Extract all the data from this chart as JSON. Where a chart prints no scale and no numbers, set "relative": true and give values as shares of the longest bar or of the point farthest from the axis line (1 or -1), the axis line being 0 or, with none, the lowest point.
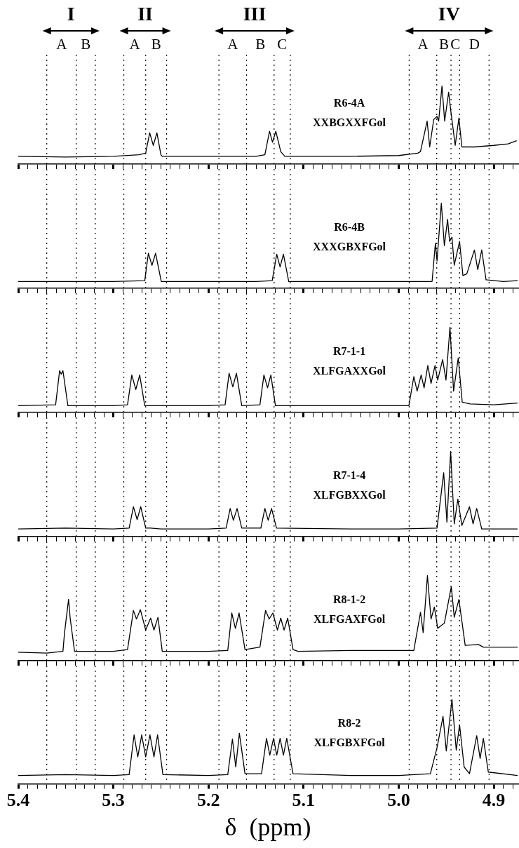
{
  "chart_data": [
    {
      "type": "line",
      "title": "R6-4A",
      "subtitle": "XXBGXXFGol",
      "relative": true,
      "color": "#000000",
      "xlim": [
        5.4,
        4.875
      ],
      "tick_labels": false,
      "xticks": [
        5.4,
        {
          "value": 5.39,
          "label": null
        },
        {
          "value": 5.38,
          "label": null
        },
        {
          "value": 5.37,
          "label": null
        },
        {
          "value": 5.36,
          "label": null
        },
        {
          "value": 5.35,
          "label": null
        },
        {
          "value": 5.34,
          "label": null
        },
        {
          "value": 5.33,
          "label": null
        },
        {
          "value": 5.32,
          "label": null
        },
        {
          "value": 5.31,
          "label": null
        },
        5.3,
        {
          "value": 5.29,
          "label": null
        },
        {
          "value": 5.28,
          "label": null
        },
        {
          "value": 5.27,
          "label": null
        },
        {
          "value": 5.26,
          "label": null
        },
        {
          "value": 5.25,
          "label": null
        },
        {
          "value": 5.24,
          "label": null
        },
        {
          "value": 5.23,
          "label": null
        },
        {
          "value": 5.22,
          "label": null
        },
        {
          "value": 5.21,
          "label": null
        },
        5.2,
        {
          "value": 5.19,
          "label": null
        },
        {
          "value": 5.18,
          "label": null
        },
        {
          "value": 5.17,
          "label": null
        },
        {
          "value": 5.16,
          "label": null
        },
        {
          "value": 5.15,
          "label": null
        },
        {
          "value": 5.14,
          "label": null
        },
        {
          "value": 5.13,
          "label": null
        },
        {
          "value": 5.12,
          "label": null
        },
        {
          "value": 5.11,
          "label": null
        },
        5.1,
        {
          "value": 5.09,
          "label": null
        },
        {
          "value": 5.08,
          "label": null
        },
        {
          "value": 5.07,
          "label": null
        },
        {
          "value": 5.06,
          "label": null
        },
        {
          "value": 5.05,
          "label": null
        },
        {
          "value": 5.04,
          "label": null
        },
        {
          "value": 5.03,
          "label": null
        },
        {
          "value": 5.02,
          "label": null
        },
        {
          "value": 5.01,
          "label": null
        },
        5,
        {
          "value": 4.99,
          "label": null
        },
        {
          "value": 4.98,
          "label": null
        },
        {
          "value": 4.97,
          "label": null
        },
        {
          "value": 4.96,
          "label": null
        },
        {
          "value": 4.95,
          "label": null
        },
        {
          "value": 4.94,
          "label": null
        },
        {
          "value": 4.93,
          "label": null
        },
        {
          "value": 4.92,
          "label": null
        },
        {
          "value": 4.91,
          "label": null
        },
        4.9,
        {
          "value": 4.89,
          "label": null
        },
        {
          "value": 4.88,
          "label": null
        }
      ],
      "ref_lines": [
        {
          "axis": "x",
          "value": 5.37,
          "label": "A",
          "line_style": "dotted"
        },
        {
          "axis": "x",
          "value": 5.339,
          "label": "B",
          "line_style": "dotted"
        },
        {
          "axis": "x",
          "value": 5.319,
          "line_style": "dotted"
        },
        {
          "axis": "x",
          "value": 5.289,
          "label": "A",
          "line_style": "dotted"
        },
        {
          "axis": "x",
          "value": 5.266,
          "label": "B",
          "line_style": "dotted"
        },
        {
          "axis": "x",
          "value": 5.244,
          "line_style": "dotted"
        },
        {
          "axis": "x",
          "value": 5.189,
          "label": "A",
          "line_style": "dotted"
        },
        {
          "axis": "x",
          "value": 5.16,
          "label": "B",
          "line_style": "dotted"
        },
        {
          "axis": "x",
          "value": 5.131,
          "label": "C",
          "line_style": "dotted"
        },
        {
          "axis": "x",
          "value": 5.114,
          "line_style": "dotted"
        },
        {
          "axis": "x",
          "value": 4.989,
          "label": "A",
          "line_style": "dotted"
        },
        {
          "axis": "x",
          "value": 4.96,
          "label": "B",
          "line_style": "dotted"
        },
        {
          "axis": "x",
          "value": 4.945,
          "label": "C",
          "line_style": "dotted"
        },
        {
          "axis": "x",
          "value": 4.936,
          "label": "D",
          "line_style": "dotted"
        },
        {
          "axis": "x",
          "value": 4.905,
          "line_style": "dotted"
        }
      ],
      "annotations": [
        "I",
        "II",
        "III",
        "IV"
      ],
      "x": [
        5.4,
        5.35,
        5.3,
        5.273,
        5.266,
        5.2618,
        5.258,
        5.2542,
        5.25,
        5.2486,
        5.2,
        5.15,
        5.1407,
        5.1358,
        5.1327,
        5.1292,
        5.124,
        5.1198,
        5.05,
        5.0,
        4.98,
        4.9771,
        4.9701,
        4.9674,
        4.9632,
        4.9597,
        4.958,
        4.9545,
        4.9517,
        4.9475,
        4.9451,
        4.9406,
        4.9367,
        4.9336,
        4.92,
        4.9,
        4.885,
        4.876
      ],
      "values": [
        0.1,
        0.09,
        0.1,
        0.12,
        0.14,
        0.4,
        0.24,
        0.4,
        0.12,
        0.1,
        0.1,
        0.1,
        0.12,
        0.42,
        0.28,
        0.42,
        0.16,
        0.1,
        0.1,
        0.11,
        0.14,
        0.16,
        0.55,
        0.22,
        0.57,
        0.61,
        0.55,
        1.0,
        0.55,
        0.92,
        0.67,
        0.24,
        0.59,
        0.22,
        0.22,
        0.24,
        0.26,
        0.3
      ]
    },
    {
      "type": "line",
      "title": "R6-4B",
      "subtitle": "XXXGBXFGol",
      "relative": true,
      "color": "#000000",
      "xlim": [
        5.4,
        4.875
      ],
      "tick_labels": false,
      "xticks": [
        5.4,
        {
          "value": 5.39,
          "label": null
        },
        {
          "value": 5.38,
          "label": null
        },
        {
          "value": 5.37,
          "label": null
        },
        {
          "value": 5.36,
          "label": null
        },
        {
          "value": 5.35,
          "label": null
        },
        {
          "value": 5.34,
          "label": null
        },
        {
          "value": 5.33,
          "label": null
        },
        {
          "value": 5.32,
          "label": null
        },
        {
          "value": 5.31,
          "label": null
        },
        5.3,
        {
          "value": 5.29,
          "label": null
        },
        {
          "value": 5.28,
          "label": null
        },
        {
          "value": 5.27,
          "label": null
        },
        {
          "value": 5.26,
          "label": null
        },
        {
          "value": 5.25,
          "label": null
        },
        {
          "value": 5.24,
          "label": null
        },
        {
          "value": 5.23,
          "label": null
        },
        {
          "value": 5.22,
          "label": null
        },
        {
          "value": 5.21,
          "label": null
        },
        5.2,
        {
          "value": 5.19,
          "label": null
        },
        {
          "value": 5.18,
          "label": null
        },
        {
          "value": 5.17,
          "label": null
        },
        {
          "value": 5.16,
          "label": null
        },
        {
          "value": 5.15,
          "label": null
        },
        {
          "value": 5.14,
          "label": null
        },
        {
          "value": 5.13,
          "label": null
        },
        {
          "value": 5.12,
          "label": null
        },
        {
          "value": 5.11,
          "label": null
        },
        5.1,
        {
          "value": 5.09,
          "label": null
        },
        {
          "value": 5.08,
          "label": null
        },
        {
          "value": 5.07,
          "label": null
        },
        {
          "value": 5.06,
          "label": null
        },
        {
          "value": 5.05,
          "label": null
        },
        {
          "value": 5.04,
          "label": null
        },
        {
          "value": 5.03,
          "label": null
        },
        {
          "value": 5.02,
          "label": null
        },
        {
          "value": 5.01,
          "label": null
        },
        5,
        {
          "value": 4.99,
          "label": null
        },
        {
          "value": 4.98,
          "label": null
        },
        {
          "value": 4.97,
          "label": null
        },
        {
          "value": 4.96,
          "label": null
        },
        {
          "value": 4.95,
          "label": null
        },
        {
          "value": 4.94,
          "label": null
        },
        {
          "value": 4.93,
          "label": null
        },
        {
          "value": 4.92,
          "label": null
        },
        {
          "value": 4.91,
          "label": null
        },
        4.9,
        {
          "value": 4.89,
          "label": null
        },
        {
          "value": 4.88,
          "label": null
        }
      ],
      "ref_lines": [
        {
          "axis": "x",
          "value": 5.37,
          "line_style": "dotted"
        },
        {
          "axis": "x",
          "value": 5.339,
          "line_style": "dotted"
        },
        {
          "axis": "x",
          "value": 5.319,
          "line_style": "dotted"
        },
        {
          "axis": "x",
          "value": 5.289,
          "line_style": "dotted"
        },
        {
          "axis": "x",
          "value": 5.266,
          "line_style": "dotted"
        },
        {
          "axis": "x",
          "value": 5.244,
          "line_style": "dotted"
        },
        {
          "axis": "x",
          "value": 5.189,
          "line_style": "dotted"
        },
        {
          "axis": "x",
          "value": 5.16,
          "line_style": "dotted"
        },
        {
          "axis": "x",
          "value": 5.131,
          "line_style": "dotted"
        },
        {
          "axis": "x",
          "value": 5.114,
          "line_style": "dotted"
        },
        {
          "axis": "x",
          "value": 4.989,
          "line_style": "dotted"
        },
        {
          "axis": "x",
          "value": 4.96,
          "line_style": "dotted"
        },
        {
          "axis": "x",
          "value": 4.945,
          "line_style": "dotted"
        },
        {
          "axis": "x",
          "value": 4.936,
          "line_style": "dotted"
        },
        {
          "axis": "x",
          "value": 4.905,
          "line_style": "dotted"
        }
      ],
      "x": [
        5.4,
        5.35,
        5.3,
        5.267,
        5.2632,
        5.2594,
        5.2556,
        5.2496,
        5.2,
        5.15,
        5.133,
        5.1282,
        5.1247,
        5.1212,
        5.1156,
        5.05,
        5.0,
        4.9649,
        4.9614,
        4.9597,
        4.9552,
        4.952,
        4.9486,
        4.9465,
        4.944,
        4.9416,
        4.936,
        4.9325,
        4.9284,
        4.9204,
        4.9169,
        4.9127,
        4.9082,
        4.89,
        4.875
      ],
      "values": [
        0.08,
        0.08,
        0.08,
        0.09,
        0.41,
        0.27,
        0.41,
        0.08,
        0.08,
        0.08,
        0.09,
        0.4,
        0.25,
        0.4,
        0.08,
        0.08,
        0.08,
        0.08,
        0.53,
        0.32,
        1.0,
        0.5,
        0.81,
        0.55,
        0.6,
        0.27,
        0.55,
        0.15,
        0.17,
        0.45,
        0.22,
        0.45,
        0.1,
        0.08,
        0.09
      ]
    },
    {
      "type": "line",
      "title": "R7-1-1",
      "subtitle": "XLFGAXXGol",
      "relative": true,
      "color": "#000000",
      "xlim": [
        5.4,
        4.875
      ],
      "tick_labels": false,
      "xticks": [
        5.4,
        {
          "value": 5.39,
          "label": null
        },
        {
          "value": 5.38,
          "label": null
        },
        {
          "value": 5.37,
          "label": null
        },
        {
          "value": 5.36,
          "label": null
        },
        {
          "value": 5.35,
          "label": null
        },
        {
          "value": 5.34,
          "label": null
        },
        {
          "value": 5.33,
          "label": null
        },
        {
          "value": 5.32,
          "label": null
        },
        {
          "value": 5.31,
          "label": null
        },
        5.3,
        {
          "value": 5.29,
          "label": null
        },
        {
          "value": 5.28,
          "label": null
        },
        {
          "value": 5.27,
          "label": null
        },
        {
          "value": 5.26,
          "label": null
        },
        {
          "value": 5.25,
          "label": null
        },
        {
          "value": 5.24,
          "label": null
        },
        {
          "value": 5.23,
          "label": null
        },
        {
          "value": 5.22,
          "label": null
        },
        {
          "value": 5.21,
          "label": null
        },
        5.2,
        {
          "value": 5.19,
          "label": null
        },
        {
          "value": 5.18,
          "label": null
        },
        {
          "value": 5.17,
          "label": null
        },
        {
          "value": 5.16,
          "label": null
        },
        {
          "value": 5.15,
          "label": null
        },
        {
          "value": 5.14,
          "label": null
        },
        {
          "value": 5.13,
          "label": null
        },
        {
          "value": 5.12,
          "label": null
        },
        {
          "value": 5.11,
          "label": null
        },
        5.1,
        {
          "value": 5.09,
          "label": null
        },
        {
          "value": 5.08,
          "label": null
        },
        {
          "value": 5.07,
          "label": null
        },
        {
          "value": 5.06,
          "label": null
        },
        {
          "value": 5.05,
          "label": null
        },
        {
          "value": 5.04,
          "label": null
        },
        {
          "value": 5.03,
          "label": null
        },
        {
          "value": 5.02,
          "label": null
        },
        {
          "value": 5.01,
          "label": null
        },
        5,
        {
          "value": 4.99,
          "label": null
        },
        {
          "value": 4.98,
          "label": null
        },
        {
          "value": 4.97,
          "label": null
        },
        {
          "value": 4.96,
          "label": null
        },
        {
          "value": 4.95,
          "label": null
        },
        {
          "value": 4.94,
          "label": null
        },
        {
          "value": 4.93,
          "label": null
        },
        {
          "value": 4.92,
          "label": null
        },
        {
          "value": 4.91,
          "label": null
        },
        4.9,
        {
          "value": 4.89,
          "label": null
        },
        {
          "value": 4.88,
          "label": null
        }
      ],
      "ref_lines": [
        {
          "axis": "x",
          "value": 5.37,
          "line_style": "dotted"
        },
        {
          "axis": "x",
          "value": 5.339,
          "line_style": "dotted"
        },
        {
          "axis": "x",
          "value": 5.319,
          "line_style": "dotted"
        },
        {
          "axis": "x",
          "value": 5.289,
          "line_style": "dotted"
        },
        {
          "axis": "x",
          "value": 5.266,
          "line_style": "dotted"
        },
        {
          "axis": "x",
          "value": 5.244,
          "line_style": "dotted"
        },
        {
          "axis": "x",
          "value": 5.189,
          "line_style": "dotted"
        },
        {
          "axis": "x",
          "value": 5.16,
          "line_style": "dotted"
        },
        {
          "axis": "x",
          "value": 5.131,
          "line_style": "dotted"
        },
        {
          "axis": "x",
          "value": 5.114,
          "line_style": "dotted"
        },
        {
          "axis": "x",
          "value": 4.989,
          "line_style": "dotted"
        },
        {
          "axis": "x",
          "value": 4.96,
          "line_style": "dotted"
        },
        {
          "axis": "x",
          "value": 4.945,
          "line_style": "dotted"
        },
        {
          "axis": "x",
          "value": 4.936,
          "line_style": "dotted"
        },
        {
          "axis": "x",
          "value": 4.905,
          "line_style": "dotted"
        }
      ],
      "x": [
        5.4,
        5.3607,
        5.3565,
        5.3548,
        5.353,
        5.3478,
        5.3,
        5.2851,
        5.2806,
        5.2764,
        5.2723,
        5.267,
        5.2,
        5.1825,
        5.1783,
        5.1744,
        5.1706,
        5.165,
        5.1459,
        5.1417,
        5.1379,
        5.1344,
        5.1296,
        5.05,
        4.9893,
        4.9841,
        4.9806,
        4.9764,
        4.9733,
        4.9694,
        4.966,
        4.9618,
        4.959,
        4.9538,
        4.9503,
        4.9461,
        4.9423,
        4.9374,
        4.9332,
        4.9249,
        4.9,
        4.875
      ],
      "values": [
        0.08,
        0.09,
        0.49,
        0.45,
        0.49,
        0.08,
        0.08,
        0.09,
        0.44,
        0.27,
        0.44,
        0.08,
        0.08,
        0.09,
        0.46,
        0.3,
        0.46,
        0.08,
        0.09,
        0.44,
        0.29,
        0.44,
        0.08,
        0.08,
        0.08,
        0.42,
        0.25,
        0.44,
        0.29,
        0.55,
        0.34,
        0.55,
        0.38,
        0.62,
        0.38,
        1.0,
        0.25,
        0.64,
        0.12,
        0.1,
        0.09,
        0.11
      ]
    },
    {
      "type": "line",
      "title": "R7-1-4",
      "subtitle": "XLFGBXXGol",
      "relative": true,
      "color": "#000000",
      "xlim": [
        5.4,
        4.875
      ],
      "tick_labels": false,
      "xticks": [
        5.4,
        {
          "value": 5.39,
          "label": null
        },
        {
          "value": 5.38,
          "label": null
        },
        {
          "value": 5.37,
          "label": null
        },
        {
          "value": 5.36,
          "label": null
        },
        {
          "value": 5.35,
          "label": null
        },
        {
          "value": 5.34,
          "label": null
        },
        {
          "value": 5.33,
          "label": null
        },
        {
          "value": 5.32,
          "label": null
        },
        {
          "value": 5.31,
          "label": null
        },
        5.3,
        {
          "value": 5.29,
          "label": null
        },
        {
          "value": 5.28,
          "label": null
        },
        {
          "value": 5.27,
          "label": null
        },
        {
          "value": 5.26,
          "label": null
        },
        {
          "value": 5.25,
          "label": null
        },
        {
          "value": 5.24,
          "label": null
        },
        {
          "value": 5.23,
          "label": null
        },
        {
          "value": 5.22,
          "label": null
        },
        {
          "value": 5.21,
          "label": null
        },
        5.2,
        {
          "value": 5.19,
          "label": null
        },
        {
          "value": 5.18,
          "label": null
        },
        {
          "value": 5.17,
          "label": null
        },
        {
          "value": 5.16,
          "label": null
        },
        {
          "value": 5.15,
          "label": null
        },
        {
          "value": 5.14,
          "label": null
        },
        {
          "value": 5.13,
          "label": null
        },
        {
          "value": 5.12,
          "label": null
        },
        {
          "value": 5.11,
          "label": null
        },
        5.1,
        {
          "value": 5.09,
          "label": null
        },
        {
          "value": 5.08,
          "label": null
        },
        {
          "value": 5.07,
          "label": null
        },
        {
          "value": 5.06,
          "label": null
        },
        {
          "value": 5.05,
          "label": null
        },
        {
          "value": 5.04,
          "label": null
        },
        {
          "value": 5.03,
          "label": null
        },
        {
          "value": 5.02,
          "label": null
        },
        {
          "value": 5.01,
          "label": null
        },
        5,
        {
          "value": 4.99,
          "label": null
        },
        {
          "value": 4.98,
          "label": null
        },
        {
          "value": 4.97,
          "label": null
        },
        {
          "value": 4.96,
          "label": null
        },
        {
          "value": 4.95,
          "label": null
        },
        {
          "value": 4.94,
          "label": null
        },
        {
          "value": 4.93,
          "label": null
        },
        {
          "value": 4.92,
          "label": null
        },
        {
          "value": 4.91,
          "label": null
        },
        4.9,
        {
          "value": 4.89,
          "label": null
        },
        {
          "value": 4.88,
          "label": null
        }
      ],
      "ref_lines": [
        {
          "axis": "x",
          "value": 5.37,
          "line_style": "dotted"
        },
        {
          "axis": "x",
          "value": 5.339,
          "line_style": "dotted"
        },
        {
          "axis": "x",
          "value": 5.319,
          "line_style": "dotted"
        },
        {
          "axis": "x",
          "value": 5.289,
          "line_style": "dotted"
        },
        {
          "axis": "x",
          "value": 5.266,
          "line_style": "dotted"
        },
        {
          "axis": "x",
          "value": 5.244,
          "line_style": "dotted"
        },
        {
          "axis": "x",
          "value": 5.189,
          "line_style": "dotted"
        },
        {
          "axis": "x",
          "value": 5.16,
          "line_style": "dotted"
        },
        {
          "axis": "x",
          "value": 5.131,
          "line_style": "dotted"
        },
        {
          "axis": "x",
          "value": 5.114,
          "line_style": "dotted"
        },
        {
          "axis": "x",
          "value": 4.989,
          "line_style": "dotted"
        },
        {
          "axis": "x",
          "value": 4.96,
          "line_style": "dotted"
        },
        {
          "axis": "x",
          "value": 4.945,
          "line_style": "dotted"
        },
        {
          "axis": "x",
          "value": 4.936,
          "line_style": "dotted"
        },
        {
          "axis": "x",
          "value": 4.905,
          "line_style": "dotted"
        }
      ],
      "x": [
        5.4,
        5.35,
        5.3,
        5.2834,
        5.2789,
        5.275,
        5.2712,
        5.266,
        5.2608,
        5.25,
        5.2,
        5.1814,
        5.1772,
        5.1738,
        5.1699,
        5.165,
        5.1449,
        5.1407,
        5.1372,
        5.1337,
        5.1285,
        5.05,
        5.0,
        4.9597,
        4.9527,
        4.9493,
        4.9454,
        4.9416,
        4.9378,
        4.9336,
        4.9256,
        4.9218,
        4.918,
        4.9127,
        4.9,
        4.875
      ],
      "values": [
        0.09,
        0.1,
        0.09,
        0.1,
        0.35,
        0.2,
        0.35,
        0.1,
        0.1,
        0.09,
        0.09,
        0.1,
        0.33,
        0.19,
        0.33,
        0.1,
        0.1,
        0.33,
        0.19,
        0.33,
        0.1,
        0.09,
        0.09,
        0.1,
        0.75,
        0.17,
        1.0,
        0.15,
        0.44,
        0.13,
        0.35,
        0.15,
        0.33,
        0.09,
        0.09,
        0.09
      ]
    },
    {
      "type": "line",
      "title": "R8-1-2",
      "subtitle": "XLFGAXFGol",
      "relative": true,
      "color": "#000000",
      "xlim": [
        5.4,
        4.875
      ],
      "tick_labels": false,
      "xticks": [
        5.4,
        {
          "value": 5.39,
          "label": null
        },
        {
          "value": 5.38,
          "label": null
        },
        {
          "value": 5.37,
          "label": null
        },
        {
          "value": 5.36,
          "label": null
        },
        {
          "value": 5.35,
          "label": null
        },
        {
          "value": 5.34,
          "label": null
        },
        {
          "value": 5.33,
          "label": null
        },
        {
          "value": 5.32,
          "label": null
        },
        {
          "value": 5.31,
          "label": null
        },
        5.3,
        {
          "value": 5.29,
          "label": null
        },
        {
          "value": 5.28,
          "label": null
        },
        {
          "value": 5.27,
          "label": null
        },
        {
          "value": 5.26,
          "label": null
        },
        {
          "value": 5.25,
          "label": null
        },
        {
          "value": 5.24,
          "label": null
        },
        {
          "value": 5.23,
          "label": null
        },
        {
          "value": 5.22,
          "label": null
        },
        {
          "value": 5.21,
          "label": null
        },
        5.2,
        {
          "value": 5.19,
          "label": null
        },
        {
          "value": 5.18,
          "label": null
        },
        {
          "value": 5.17,
          "label": null
        },
        {
          "value": 5.16,
          "label": null
        },
        {
          "value": 5.15,
          "label": null
        },
        {
          "value": 5.14,
          "label": null
        },
        {
          "value": 5.13,
          "label": null
        },
        {
          "value": 5.12,
          "label": null
        },
        {
          "value": 5.11,
          "label": null
        },
        5.1,
        {
          "value": 5.09,
          "label": null
        },
        {
          "value": 5.08,
          "label": null
        },
        {
          "value": 5.07,
          "label": null
        },
        {
          "value": 5.06,
          "label": null
        },
        {
          "value": 5.05,
          "label": null
        },
        {
          "value": 5.04,
          "label": null
        },
        {
          "value": 5.03,
          "label": null
        },
        {
          "value": 5.02,
          "label": null
        },
        {
          "value": 5.01,
          "label": null
        },
        5,
        {
          "value": 4.99,
          "label": null
        },
        {
          "value": 4.98,
          "label": null
        },
        {
          "value": 4.97,
          "label": null
        },
        {
          "value": 4.96,
          "label": null
        },
        {
          "value": 4.95,
          "label": null
        },
        {
          "value": 4.94,
          "label": null
        },
        {
          "value": 4.93,
          "label": null
        },
        {
          "value": 4.92,
          "label": null
        },
        {
          "value": 4.91,
          "label": null
        },
        4.9,
        {
          "value": 4.89,
          "label": null
        },
        {
          "value": 4.88,
          "label": null
        }
      ],
      "ref_lines": [
        {
          "axis": "x",
          "value": 5.37,
          "line_style": "dotted"
        },
        {
          "axis": "x",
          "value": 5.339,
          "line_style": "dotted"
        },
        {
          "axis": "x",
          "value": 5.319,
          "line_style": "dotted"
        },
        {
          "axis": "x",
          "value": 5.289,
          "line_style": "dotted"
        },
        {
          "axis": "x",
          "value": 5.266,
          "line_style": "dotted"
        },
        {
          "axis": "x",
          "value": 5.244,
          "line_style": "dotted"
        },
        {
          "axis": "x",
          "value": 5.189,
          "line_style": "dotted"
        },
        {
          "axis": "x",
          "value": 5.16,
          "line_style": "dotted"
        },
        {
          "axis": "x",
          "value": 5.131,
          "line_style": "dotted"
        },
        {
          "axis": "x",
          "value": 5.114,
          "line_style": "dotted"
        },
        {
          "axis": "x",
          "value": 4.989,
          "line_style": "dotted"
        },
        {
          "axis": "x",
          "value": 4.96,
          "line_style": "dotted"
        },
        {
          "axis": "x",
          "value": 4.945,
          "line_style": "dotted"
        },
        {
          "axis": "x",
          "value": 4.936,
          "line_style": "dotted"
        },
        {
          "axis": "x",
          "value": 4.905,
          "line_style": "dotted"
        }
      ],
      "x": [
        5.4,
        5.37,
        5.353,
        5.3513,
        5.3471,
        5.3454,
        5.3408,
        5.3,
        5.2851,
        5.2789,
        5.2757,
        5.2716,
        5.266,
        5.2608,
        5.2573,
        5.2531,
        5.2486,
        5.2,
        5.1797,
        5.1755,
        5.1717,
        5.1678,
        5.1616,
        5.1459,
        5.14,
        5.1362,
        5.1323,
        5.1275,
        5.124,
        5.1205,
        5.1167,
        5.1111,
        5.1059,
        5.05,
        4.9841,
        4.9771,
        4.9743,
        4.9698,
        4.966,
        4.9625,
        4.959,
        4.9545,
        4.952,
        4.9447,
        4.9416,
        4.9367,
        4.9301,
        4.9162,
        4.911,
        4.875
      ],
      "values": [
        0.1,
        0.09,
        0.11,
        0.33,
        0.72,
        0.5,
        0.11,
        0.11,
        0.13,
        0.59,
        0.49,
        0.6,
        0.36,
        0.5,
        0.36,
        0.51,
        0.11,
        0.11,
        0.12,
        0.56,
        0.38,
        0.56,
        0.13,
        0.16,
        0.59,
        0.49,
        0.56,
        0.36,
        0.5,
        0.36,
        0.5,
        0.13,
        0.11,
        0.12,
        0.12,
        0.57,
        0.33,
        1.0,
        0.49,
        0.63,
        0.38,
        0.42,
        0.44,
        0.87,
        0.51,
        0.72,
        0.18,
        0.19,
        0.16,
        0.16
      ]
    },
    {
      "type": "line",
      "title": "R8-2",
      "subtitle": "XLFGBXFGol",
      "relative": true,
      "color": "#000000",
      "xlim": [
        5.4,
        4.875
      ],
      "xlabel": "δ  (ppm)",
      "xticks": [
        5.4,
        {
          "value": 5.39,
          "label": null
        },
        {
          "value": 5.38,
          "label": null
        },
        {
          "value": 5.37,
          "label": null
        },
        {
          "value": 5.36,
          "label": null
        },
        {
          "value": 5.35,
          "label": null
        },
        {
          "value": 5.34,
          "label": null
        },
        {
          "value": 5.33,
          "label": null
        },
        {
          "value": 5.32,
          "label": null
        },
        {
          "value": 5.31,
          "label": null
        },
        5.3,
        {
          "value": 5.29,
          "label": null
        },
        {
          "value": 5.28,
          "label": null
        },
        {
          "value": 5.27,
          "label": null
        },
        {
          "value": 5.26,
          "label": null
        },
        {
          "value": 5.25,
          "label": null
        },
        {
          "value": 5.24,
          "label": null
        },
        {
          "value": 5.23,
          "label": null
        },
        {
          "value": 5.22,
          "label": null
        },
        {
          "value": 5.21,
          "label": null
        },
        5.2,
        {
          "value": 5.19,
          "label": null
        },
        {
          "value": 5.18,
          "label": null
        },
        {
          "value": 5.17,
          "label": null
        },
        {
          "value": 5.16,
          "label": null
        },
        {
          "value": 5.15,
          "label": null
        },
        {
          "value": 5.14,
          "label": null
        },
        {
          "value": 5.13,
          "label": null
        },
        {
          "value": 5.12,
          "label": null
        },
        {
          "value": 5.11,
          "label": null
        },
        5.1,
        {
          "value": 5.09,
          "label": null
        },
        {
          "value": 5.08,
          "label": null
        },
        {
          "value": 5.07,
          "label": null
        },
        {
          "value": 5.06,
          "label": null
        },
        {
          "value": 5.05,
          "label": null
        },
        {
          "value": 5.04,
          "label": null
        },
        {
          "value": 5.03,
          "label": null
        },
        {
          "value": 5.02,
          "label": null
        },
        {
          "value": 5.01,
          "label": null
        },
        {
          "value": 5,
          "label": "5.0"
        },
        {
          "value": 4.99,
          "label": null
        },
        {
          "value": 4.98,
          "label": null
        },
        {
          "value": 4.97,
          "label": null
        },
        {
          "value": 4.96,
          "label": null
        },
        {
          "value": 4.95,
          "label": null
        },
        {
          "value": 4.94,
          "label": null
        },
        {
          "value": 4.93,
          "label": null
        },
        {
          "value": 4.92,
          "label": null
        },
        {
          "value": 4.91,
          "label": null
        },
        4.9,
        {
          "value": 4.89,
          "label": null
        },
        {
          "value": 4.88,
          "label": null
        }
      ],
      "ref_lines": [
        {
          "axis": "x",
          "value": 5.37,
          "line_style": "dotted"
        },
        {
          "axis": "x",
          "value": 5.339,
          "line_style": "dotted"
        },
        {
          "axis": "x",
          "value": 5.319,
          "line_style": "dotted"
        },
        {
          "axis": "x",
          "value": 5.289,
          "line_style": "dotted"
        },
        {
          "axis": "x",
          "value": 5.266,
          "line_style": "dotted"
        },
        {
          "axis": "x",
          "value": 5.244,
          "line_style": "dotted"
        },
        {
          "axis": "x",
          "value": 5.189,
          "line_style": "dotted"
        },
        {
          "axis": "x",
          "value": 5.16,
          "line_style": "dotted"
        },
        {
          "axis": "x",
          "value": 5.131,
          "line_style": "dotted"
        },
        {
          "axis": "x",
          "value": 5.114,
          "line_style": "dotted"
        },
        {
          "axis": "x",
          "value": 4.989,
          "line_style": "dotted"
        },
        {
          "axis": "x",
          "value": 4.96,
          "line_style": "dotted"
        },
        {
          "axis": "x",
          "value": 4.945,
          "line_style": "dotted"
        },
        {
          "axis": "x",
          "value": 4.936,
          "line_style": "dotted"
        },
        {
          "axis": "x",
          "value": 4.905,
          "line_style": "dotted"
        }
      ],
      "x": [
        5.4,
        5.35,
        5.3,
        5.2834,
        5.2782,
        5.2743,
        5.2702,
        5.266,
        5.2615,
        5.2573,
        5.2535,
        5.2479,
        5.2,
        5.1797,
        5.1748,
        5.1713,
        5.1675,
        5.1616,
        5.1442,
        5.139,
        5.1355,
        5.1316,
        5.1282,
        5.1247,
        5.1212,
        5.1177,
        5.1111,
        5.05,
        5.0,
        4.9667,
        4.9597,
        4.9534,
        4.95,
        4.944,
        4.9395,
        4.936,
        4.9312,
        4.9256,
        4.918,
        4.9144,
        4.911,
        4.9058,
        4.875
      ],
      "values": [
        0.1,
        0.11,
        0.1,
        0.11,
        0.58,
        0.32,
        0.58,
        0.32,
        0.58,
        0.32,
        0.58,
        0.11,
        0.1,
        0.11,
        0.53,
        0.2,
        0.6,
        0.12,
        0.12,
        0.54,
        0.34,
        0.54,
        0.34,
        0.54,
        0.34,
        0.54,
        0.12,
        0.1,
        0.1,
        0.12,
        0.43,
        0.8,
        0.39,
        1.0,
        0.4,
        0.7,
        0.2,
        0.12,
        0.57,
        0.3,
        0.54,
        0.14,
        0.1
      ]
    }
  ]
}
